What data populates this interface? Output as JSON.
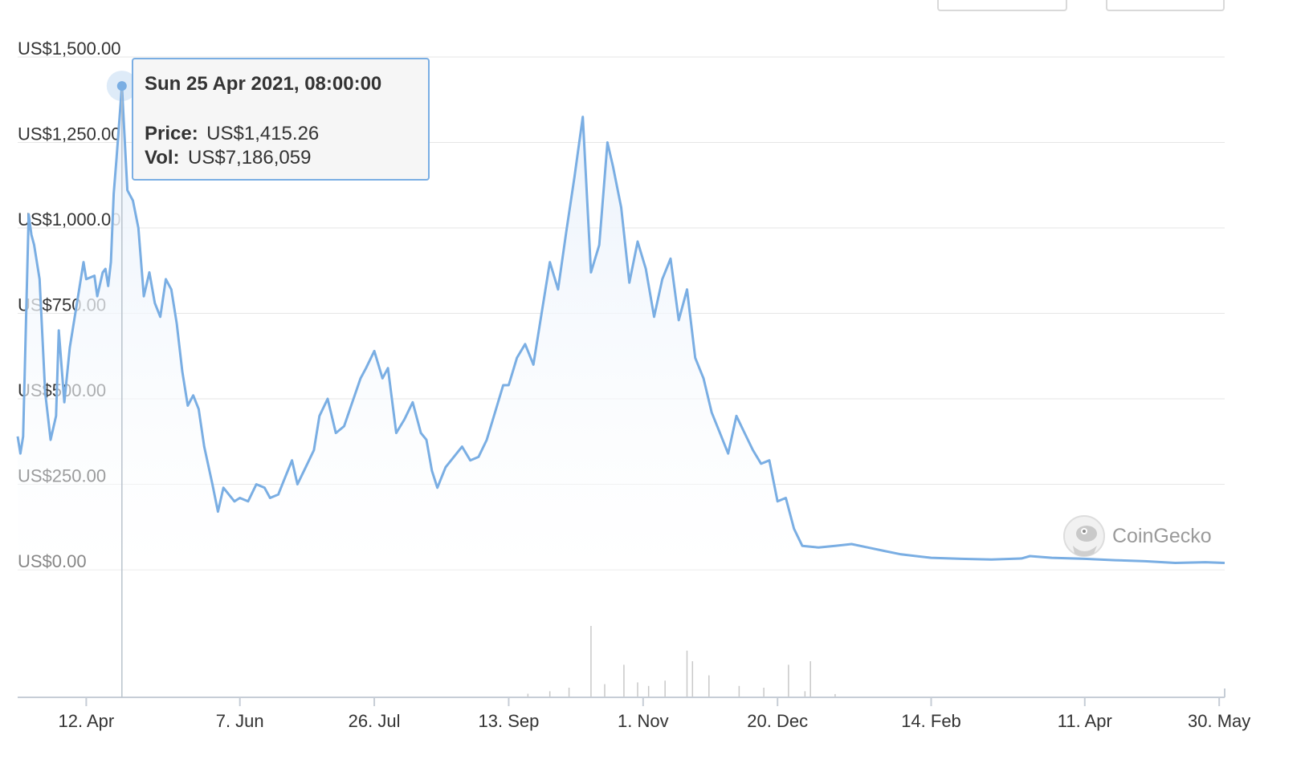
{
  "brand": {
    "name": "CoinGecko"
  },
  "colors": {
    "line": "#7aaee3",
    "area_top": "#e9f1fb",
    "grid": "#e6e6e6",
    "axis": "#c6cdd6",
    "volume": "#c8c8c8",
    "tooltip_bg": "#f6f6f6",
    "tooltip_border": "#7aaee3"
  },
  "tooltip": {
    "title": "Sun 25 Apr 2021, 08:00:00",
    "price_label": "Price:",
    "price_value": "US$1,415.26",
    "vol_label": "Vol:",
    "vol_value": "US$7,186,059"
  },
  "chart_data": {
    "type": "area",
    "title": "",
    "xlabel": "",
    "ylabel": "",
    "ylim": [
      0,
      1500
    ],
    "y_ticks": [
      {
        "value": 1500,
        "label": "US$1,500.00"
      },
      {
        "value": 1250,
        "label": "US$1,250.00"
      },
      {
        "value": 1000,
        "label": "US$1,000.00"
      },
      {
        "value": 750,
        "label": "US$750.00"
      },
      {
        "value": 500,
        "label": "US$500.00"
      },
      {
        "value": 250,
        "label": "US$250.00"
      },
      {
        "value": 0,
        "label": "US$0.00"
      }
    ],
    "x_range": [
      "2021-03-18",
      "2022-06-01"
    ],
    "x_ticks": [
      {
        "date": "2021-04-12",
        "label": "12. Apr"
      },
      {
        "date": "2021-06-07",
        "label": "7. Jun"
      },
      {
        "date": "2021-07-26",
        "label": "26. Jul"
      },
      {
        "date": "2021-09-13",
        "label": "13. Sep"
      },
      {
        "date": "2021-11-01",
        "label": "1. Nov"
      },
      {
        "date": "2021-12-20",
        "label": "20. Dec"
      },
      {
        "date": "2022-02-14",
        "label": "14. Feb"
      },
      {
        "date": "2022-04-11",
        "label": "11. Apr"
      },
      {
        "date": "2022-05-30",
        "label": "30. May"
      }
    ],
    "highlight": {
      "date": "2021-04-25",
      "price": 1415.26
    },
    "grid": true,
    "legend": "none",
    "price_series": [
      [
        "2021-03-18",
        390
      ],
      [
        "2021-03-19",
        340
      ],
      [
        "2021-03-20",
        390
      ],
      [
        "2021-03-22",
        1040
      ],
      [
        "2021-03-23",
        980
      ],
      [
        "2021-03-24",
        950
      ],
      [
        "2021-03-26",
        850
      ],
      [
        "2021-03-28",
        520
      ],
      [
        "2021-03-30",
        380
      ],
      [
        "2021-04-01",
        450
      ],
      [
        "2021-04-02",
        700
      ],
      [
        "2021-04-04",
        490
      ],
      [
        "2021-04-06",
        650
      ],
      [
        "2021-04-09",
        800
      ],
      [
        "2021-04-11",
        900
      ],
      [
        "2021-04-12",
        850
      ],
      [
        "2021-04-15",
        860
      ],
      [
        "2021-04-16",
        800
      ],
      [
        "2021-04-18",
        870
      ],
      [
        "2021-04-19",
        880
      ],
      [
        "2021-04-20",
        830
      ],
      [
        "2021-04-21",
        900
      ],
      [
        "2021-04-22",
        1100
      ],
      [
        "2021-04-23",
        1200
      ],
      [
        "2021-04-25",
        1415
      ],
      [
        "2021-04-27",
        1110
      ],
      [
        "2021-04-29",
        1080
      ],
      [
        "2021-05-01",
        1000
      ],
      [
        "2021-05-03",
        800
      ],
      [
        "2021-05-05",
        870
      ],
      [
        "2021-05-07",
        780
      ],
      [
        "2021-05-09",
        740
      ],
      [
        "2021-05-11",
        850
      ],
      [
        "2021-05-13",
        820
      ],
      [
        "2021-05-15",
        720
      ],
      [
        "2021-05-17",
        580
      ],
      [
        "2021-05-19",
        480
      ],
      [
        "2021-05-21",
        510
      ],
      [
        "2021-05-23",
        470
      ],
      [
        "2021-05-25",
        360
      ],
      [
        "2021-05-28",
        250
      ],
      [
        "2021-05-30",
        170
      ],
      [
        "2021-06-01",
        240
      ],
      [
        "2021-06-05",
        200
      ],
      [
        "2021-06-07",
        210
      ],
      [
        "2021-06-10",
        200
      ],
      [
        "2021-06-13",
        250
      ],
      [
        "2021-06-16",
        240
      ],
      [
        "2021-06-18",
        210
      ],
      [
        "2021-06-21",
        220
      ],
      [
        "2021-06-23",
        260
      ],
      [
        "2021-06-26",
        320
      ],
      [
        "2021-06-28",
        250
      ],
      [
        "2021-07-01",
        300
      ],
      [
        "2021-07-04",
        350
      ],
      [
        "2021-07-06",
        450
      ],
      [
        "2021-07-09",
        500
      ],
      [
        "2021-07-12",
        400
      ],
      [
        "2021-07-15",
        420
      ],
      [
        "2021-07-18",
        490
      ],
      [
        "2021-07-21",
        560
      ],
      [
        "2021-07-23",
        590
      ],
      [
        "2021-07-26",
        640
      ],
      [
        "2021-07-29",
        560
      ],
      [
        "2021-07-31",
        590
      ],
      [
        "2021-08-03",
        400
      ],
      [
        "2021-08-06",
        440
      ],
      [
        "2021-08-09",
        490
      ],
      [
        "2021-08-12",
        400
      ],
      [
        "2021-08-14",
        380
      ],
      [
        "2021-08-16",
        290
      ],
      [
        "2021-08-18",
        240
      ],
      [
        "2021-08-21",
        300
      ],
      [
        "2021-08-24",
        330
      ],
      [
        "2021-08-27",
        360
      ],
      [
        "2021-08-30",
        320
      ],
      [
        "2021-09-02",
        330
      ],
      [
        "2021-09-05",
        380
      ],
      [
        "2021-09-08",
        460
      ],
      [
        "2021-09-11",
        540
      ],
      [
        "2021-09-13",
        540
      ],
      [
        "2021-09-16",
        620
      ],
      [
        "2021-09-19",
        660
      ],
      [
        "2021-09-22",
        600
      ],
      [
        "2021-09-25",
        750
      ],
      [
        "2021-09-28",
        900
      ],
      [
        "2021-10-01",
        820
      ],
      [
        "2021-10-04",
        990
      ],
      [
        "2021-10-07",
        1150
      ],
      [
        "2021-10-10",
        1325
      ],
      [
        "2021-10-13",
        870
      ],
      [
        "2021-10-16",
        950
      ],
      [
        "2021-10-19",
        1250
      ],
      [
        "2021-10-21",
        1180
      ],
      [
        "2021-10-24",
        1060
      ],
      [
        "2021-10-27",
        840
      ],
      [
        "2021-10-30",
        960
      ],
      [
        "2021-11-02",
        880
      ],
      [
        "2021-11-05",
        740
      ],
      [
        "2021-11-08",
        850
      ],
      [
        "2021-11-11",
        910
      ],
      [
        "2021-11-14",
        730
      ],
      [
        "2021-11-17",
        820
      ],
      [
        "2021-11-20",
        620
      ],
      [
        "2021-11-23",
        560
      ],
      [
        "2021-11-26",
        460
      ],
      [
        "2021-11-29",
        400
      ],
      [
        "2021-12-02",
        340
      ],
      [
        "2021-12-05",
        450
      ],
      [
        "2021-12-08",
        400
      ],
      [
        "2021-12-11",
        350
      ],
      [
        "2021-12-14",
        310
      ],
      [
        "2021-12-17",
        320
      ],
      [
        "2021-12-20",
        200
      ],
      [
        "2021-12-23",
        210
      ],
      [
        "2021-12-26",
        120
      ],
      [
        "2021-12-29",
        70
      ],
      [
        "2022-01-04",
        65
      ],
      [
        "2022-01-10",
        70
      ],
      [
        "2022-01-16",
        75
      ],
      [
        "2022-01-22",
        65
      ],
      [
        "2022-01-28",
        55
      ],
      [
        "2022-02-03",
        45
      ],
      [
        "2022-02-14",
        35
      ],
      [
        "2022-02-25",
        32
      ],
      [
        "2022-03-08",
        30
      ],
      [
        "2022-03-19",
        33
      ],
      [
        "2022-03-22",
        40
      ],
      [
        "2022-03-30",
        35
      ],
      [
        "2022-04-11",
        32
      ],
      [
        "2022-04-22",
        28
      ],
      [
        "2022-05-03",
        25
      ],
      [
        "2022-05-14",
        20
      ],
      [
        "2022-05-25",
        22
      ],
      [
        "2022-06-01",
        20
      ]
    ],
    "volume_series": [
      [
        "2021-10-13",
        20000000
      ],
      [
        "2021-10-25",
        9000000
      ],
      [
        "2021-11-17",
        13000000
      ],
      [
        "2021-11-19",
        10000000
      ],
      [
        "2021-12-24",
        9000000
      ],
      [
        "2022-01-01",
        10000000
      ],
      [
        "2021-10-05",
        2500000
      ],
      [
        "2021-10-18",
        3500000
      ],
      [
        "2021-10-30",
        4000000
      ],
      [
        "2021-11-09",
        4500000
      ],
      [
        "2021-11-25",
        6000000
      ],
      [
        "2021-12-06",
        3000000
      ],
      [
        "2021-09-28",
        1500000
      ],
      [
        "2021-11-03",
        3000000
      ],
      [
        "2021-12-15",
        2500000
      ],
      [
        "2021-09-20",
        800000
      ],
      [
        "2021-12-30",
        1500000
      ],
      [
        "2022-01-10",
        700000
      ]
    ],
    "series": [
      {
        "name": "Price",
        "values_ref": "price_series"
      },
      {
        "name": "Vol",
        "values_ref": "volume_series"
      }
    ]
  }
}
